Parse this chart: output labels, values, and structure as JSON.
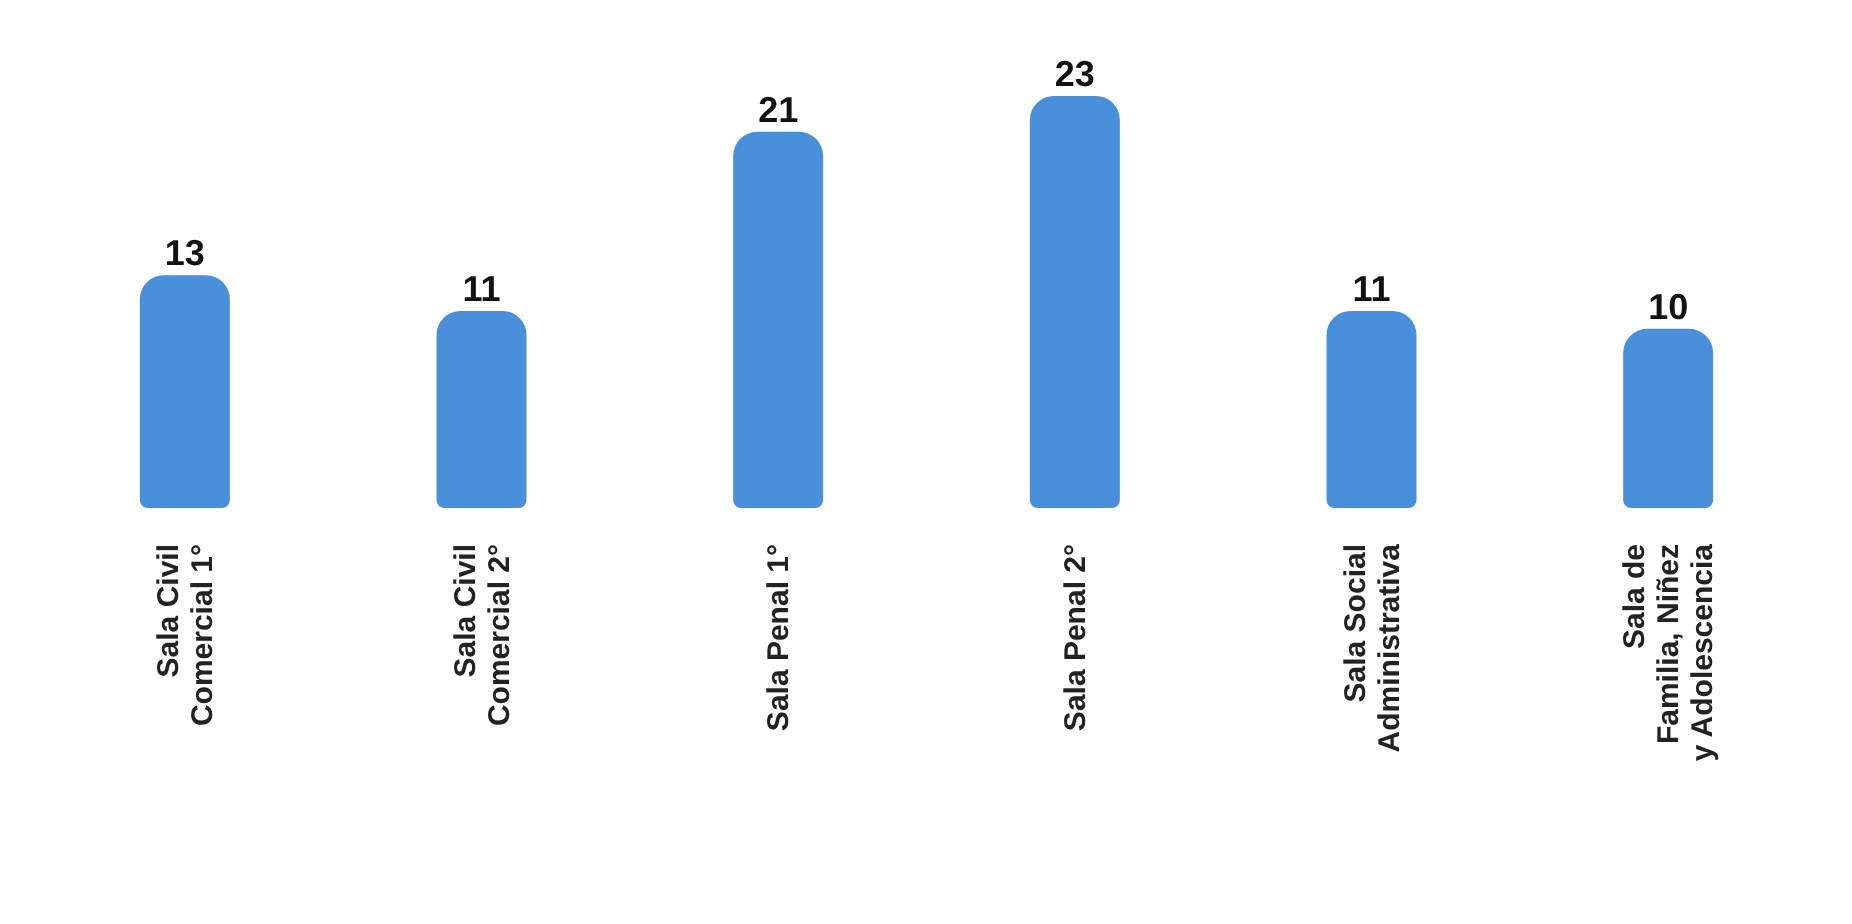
{
  "chart_data": {
    "type": "bar",
    "categories": [
      "Sala Civil Comercial 1°",
      "Sala Civil Comercial 2°",
      "Sala Penal 1°",
      "Sala Penal 2°",
      "Sala Social Administrativa",
      "Sala de Familia, Niñez y Adolescencia"
    ],
    "values": [
      13,
      11,
      21,
      23,
      11,
      10
    ],
    "color": "#4a8fd9",
    "data_labels": true
  }
}
